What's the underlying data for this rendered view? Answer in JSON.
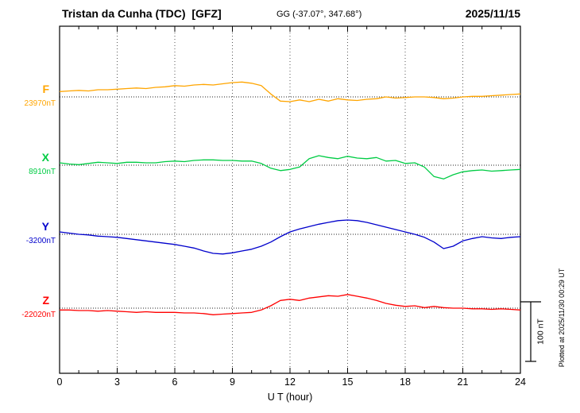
{
  "header": {
    "station_title": "Tristan da Cunha (TDC)  [GFZ]",
    "coords": "GG (-37.07°, 347.68°)",
    "date": "2025/11/15"
  },
  "axis": {
    "x_label": "U T (hour)"
  },
  "scale_bar": {
    "label": "100 nT",
    "nT": 100
  },
  "side_note": "Plotted at 2025/11/30 00:29 UT",
  "chart_data": {
    "type": "line",
    "title": "Magnetogram Tristan da Cunha (TDC) [GFZ] 2025/11/15",
    "xlabel": "U T (hour)",
    "ylabel": "",
    "x_start": 0,
    "x_end": 24,
    "x_step": 0.5,
    "x_ticks": [
      0,
      3,
      6,
      9,
      12,
      15,
      18,
      21,
      24
    ],
    "grid": "vertical-dotted",
    "scale_nT_per_bar": 100,
    "series": [
      {
        "name": "F",
        "color": "#FFA500",
        "baseline_nT": 23970,
        "baseline_label": "23970nT",
        "units": "nT offset from baseline",
        "values": [
          9,
          10,
          11,
          10,
          12,
          12,
          13,
          14,
          15,
          14,
          16,
          17,
          19,
          18,
          20,
          21,
          20,
          22,
          24,
          25,
          23,
          19,
          5,
          -7,
          -8,
          -5,
          -8,
          -4,
          -7,
          -3,
          -5,
          -6,
          -4,
          -3,
          0,
          -2,
          -1,
          0,
          0,
          -1,
          -3,
          -2,
          0,
          1,
          1,
          2,
          3,
          4,
          5
        ]
      },
      {
        "name": "X",
        "color": "#00CC44",
        "baseline_nT": 8910,
        "baseline_label": "8910nT",
        "units": "nT offset from baseline",
        "values": [
          4,
          2,
          1,
          3,
          5,
          4,
          3,
          5,
          5,
          4,
          4,
          6,
          7,
          6,
          8,
          9,
          9,
          8,
          8,
          7,
          7,
          3,
          -5,
          -9,
          -7,
          -3,
          11,
          16,
          13,
          11,
          15,
          12,
          11,
          13,
          7,
          8,
          3,
          4,
          -3,
          -19,
          -23,
          -16,
          -11,
          -9,
          -8,
          -10,
          -9,
          -8,
          -7
        ]
      },
      {
        "name": "Y",
        "color": "#0000CC",
        "baseline_nT": -3200,
        "baseline_label": "-3200nT",
        "units": "nT offset from baseline",
        "values": [
          4,
          2,
          0,
          -1,
          -3,
          -4,
          -5,
          -7,
          -9,
          -11,
          -13,
          -15,
          -17,
          -20,
          -23,
          -28,
          -32,
          -33,
          -31,
          -28,
          -25,
          -20,
          -13,
          -4,
          4,
          9,
          13,
          17,
          20,
          23,
          24,
          23,
          20,
          16,
          12,
          8,
          4,
          0,
          -5,
          -13,
          -24,
          -20,
          -11,
          -7,
          -4,
          -6,
          -7,
          -5,
          -4
        ]
      },
      {
        "name": "Z",
        "color": "#FF0000",
        "baseline_nT": -22020,
        "baseline_label": "-22020nT",
        "units": "nT offset from baseline",
        "values": [
          -3,
          -3,
          -4,
          -4,
          -5,
          -4,
          -5,
          -6,
          -7,
          -6,
          -7,
          -7,
          -7,
          -8,
          -8,
          -9,
          -11,
          -10,
          -9,
          -8,
          -7,
          -3,
          4,
          13,
          15,
          13,
          17,
          19,
          21,
          20,
          23,
          20,
          17,
          13,
          8,
          5,
          3,
          4,
          1,
          3,
          1,
          0,
          0,
          -1,
          -1,
          -2,
          -1,
          -2,
          -3
        ]
      }
    ]
  }
}
